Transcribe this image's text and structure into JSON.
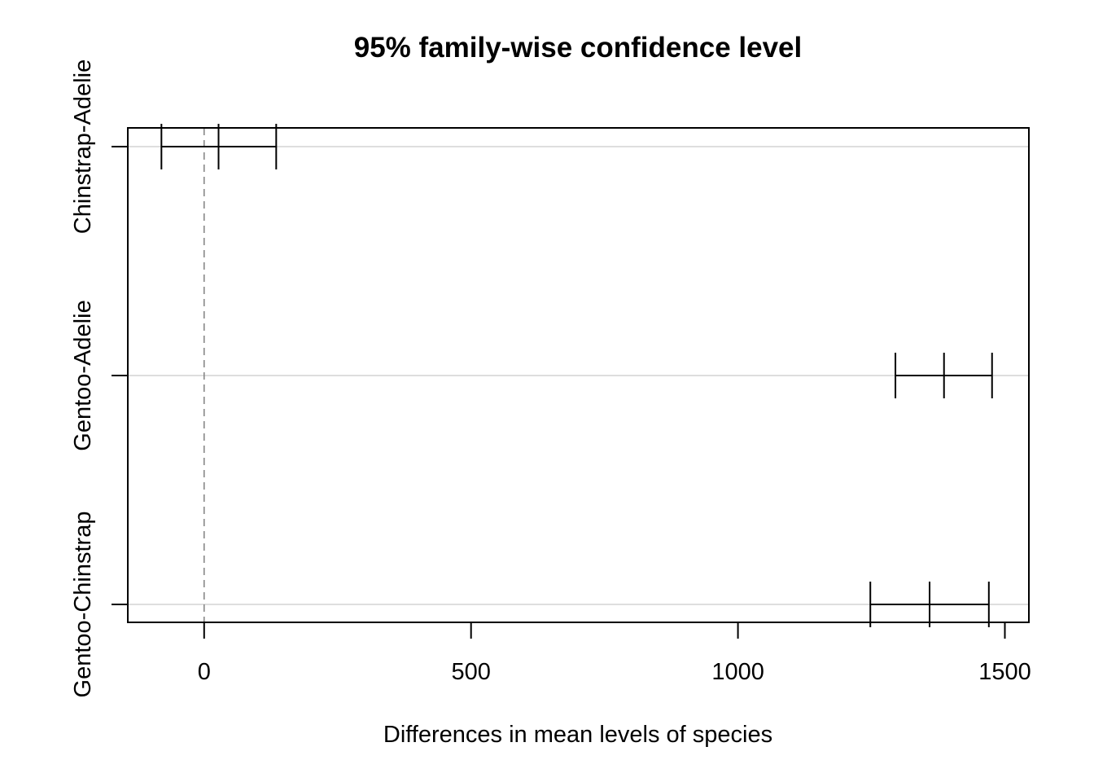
{
  "chart_data": {
    "type": "errorbar",
    "title": "95% family-wise confidence level",
    "xlabel": "Differences in mean levels of species",
    "ylabel": "",
    "xlim": [
      -143,
      1545
    ],
    "xticks": [
      0,
      500,
      1000,
      1500
    ],
    "xtick_labels": [
      "0",
      "500",
      "1000",
      "1500"
    ],
    "reference_line": 0,
    "grid": "horizontal",
    "comparisons": [
      {
        "label": "Chinstrap-Adelie",
        "diff": 27,
        "lwr": -80,
        "upr": 135
      },
      {
        "label": "Gentoo-Adelie",
        "diff": 1386,
        "lwr": 1295,
        "upr": 1476
      },
      {
        "label": "Gentoo-Chinstrap",
        "diff": 1359,
        "lwr": 1248,
        "upr": 1470
      }
    ],
    "colors": {
      "lines": "#000000",
      "grid": "#d3d3d3",
      "reference": "#808080"
    }
  }
}
